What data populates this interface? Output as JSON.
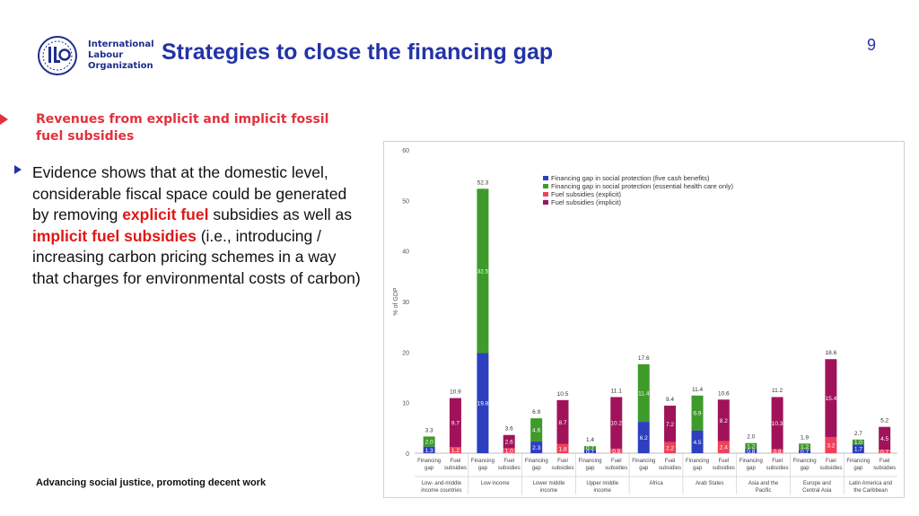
{
  "header": {
    "logo_lines": [
      "International",
      "Labour",
      "Organization"
    ],
    "title": "Strategies to close the financing gap",
    "page_number": "9"
  },
  "subheading": "Revenues from explicit and implicit fossil fuel subsidies",
  "bullet": {
    "part1": "Evidence shows that at the domestic level, considerable fiscal space could be generated by removing ",
    "highlight1": "explicit fuel",
    "part2": " subsidies as well as ",
    "highlight2": "implicit fuel subsidies",
    "part3": " (i.e., introducing / increasing carbon pricing schemes in a way that charges for environmental costs of carbon)"
  },
  "footer": "Advancing social justice, promoting decent work",
  "colors": {
    "title": "#2333a6",
    "accent_red": "#e2313d",
    "cash": "#2e3fbf",
    "health": "#3e9b2a",
    "explicit": "#f0405a",
    "implicit": "#a0135a"
  },
  "chart_data": {
    "type": "bar",
    "stacked": true,
    "ylabel": "% of GDP",
    "ylim": [
      0,
      60
    ],
    "yticks": [
      0,
      10,
      20,
      30,
      40,
      50,
      60
    ],
    "grid": false,
    "legend_position": "top-center",
    "series": [
      {
        "name": "Financing gap in social protection (five cash benefits)",
        "color": "#2e3fbf"
      },
      {
        "name": "Financing gap in social protection (essential health care only)",
        "color": "#3e9b2a"
      },
      {
        "name": "Fuel subsidies (explicit)",
        "color": "#f0405a"
      },
      {
        "name": "Fuel subsidies (implicit)",
        "color": "#a0135a"
      }
    ],
    "groups": [
      {
        "name": "Low- and-middle income countries",
        "gap": {
          "cash": 1.3,
          "health": 2.0,
          "total": 3.3,
          "cash_label": "1.3",
          "health_label": "2.0"
        },
        "fuel": {
          "explicit": 1.2,
          "implicit": 9.7,
          "total": 10.9,
          "explicit_label": "1.2",
          "implicit_label": "9.7"
        }
      },
      {
        "name": "Low income",
        "gap": {
          "cash": 19.8,
          "health": 32.5,
          "total": 52.3,
          "cash_label": "19.8",
          "health_label": "32.5"
        },
        "fuel": {
          "explicit": 1.0,
          "implicit": 2.6,
          "total": 3.6,
          "explicit_label": "1.0",
          "implicit_label": "2.6"
        }
      },
      {
        "name": "Lower middle income",
        "gap": {
          "cash": 2.3,
          "health": 4.6,
          "total": 6.9,
          "cash_label": "2.3",
          "health_label": "4.6"
        },
        "fuel": {
          "explicit": 1.8,
          "implicit": 8.7,
          "total": 10.5,
          "explicit_label": "1.8",
          "implicit_label": "8.7"
        }
      },
      {
        "name": "Upper middle income",
        "gap": {
          "cash": 0.7,
          "health": 0.7,
          "total": 1.4,
          "cash_label": "0.7",
          "health_label": "0.7"
        },
        "fuel": {
          "explicit": 0.9,
          "implicit": 10.2,
          "total": 11.1,
          "explicit_label": "0.9",
          "implicit_label": "10.2"
        }
      },
      {
        "name": "Africa",
        "gap": {
          "cash": 6.2,
          "health": 11.4,
          "total": 17.6,
          "cash_label": "6.2",
          "health_label": "11.4"
        },
        "fuel": {
          "explicit": 2.2,
          "implicit": 7.2,
          "total": 9.4,
          "explicit_label": "2.2",
          "implicit_label": "7.2"
        }
      },
      {
        "name": "Arab States",
        "gap": {
          "cash": 4.5,
          "health": 6.9,
          "total": 11.4,
          "cash_label": "4.5",
          "health_label": "6.9"
        },
        "fuel": {
          "explicit": 2.4,
          "implicit": 8.2,
          "total": 10.6,
          "explicit_label": "2.4",
          "implicit_label": "8.2"
        }
      },
      {
        "name": "Asia and the Pacific",
        "gap": {
          "cash": 0.8,
          "health": 1.2,
          "total": 2.0,
          "cash_label": "0.8",
          "health_label": "1.2"
        },
        "fuel": {
          "explicit": 0.8,
          "implicit": 10.3,
          "total": 11.2,
          "explicit_label": "0.8",
          "implicit_label": "10.3"
        }
      },
      {
        "name": "Europe and Central Asia",
        "gap": {
          "cash": 0.7,
          "health": 1.2,
          "total": 1.9,
          "cash_label": "0.7",
          "health_label": "1.2"
        },
        "fuel": {
          "explicit": 3.2,
          "implicit": 15.4,
          "total": 18.6,
          "explicit_label": "3.2",
          "implicit_label": "15.4"
        }
      },
      {
        "name": "Latin America and the Caribbean",
        "gap": {
          "cash": 1.7,
          "health": 1.0,
          "total": 2.7,
          "cash_label": "1.7",
          "health_label": "1.0"
        },
        "fuel": {
          "explicit": 0.7,
          "implicit": 4.5,
          "total": 5.2,
          "explicit_label": "0.7",
          "implicit_label": "4.5"
        }
      }
    ],
    "bar_labels": [
      "Financing gap",
      "Fuel subsidies"
    ]
  }
}
